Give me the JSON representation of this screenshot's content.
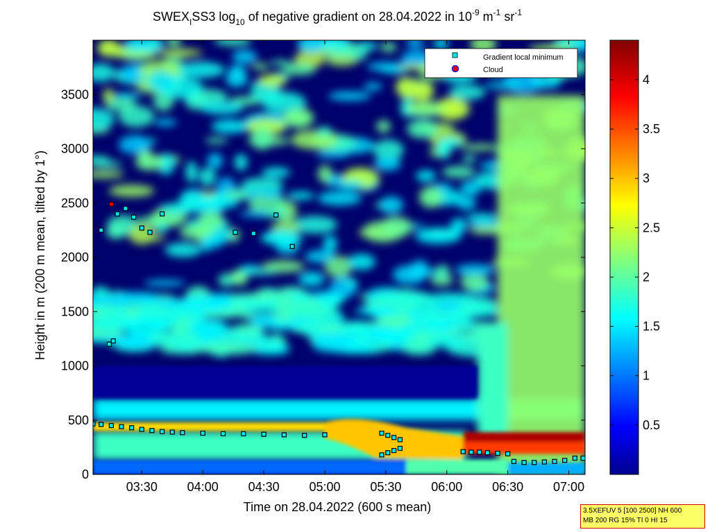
{
  "chart_data": {
    "type": "heatmap",
    "title": {
      "prefix": "SWEX",
      "prefix_sub": "I",
      "mid": "SS3 log",
      "mid_sub": "10",
      "rest": " of negative gradient on 28.04.2022 in 10",
      "sup1": "-9",
      "unit_m": " m",
      "sup2": "-1",
      "unit_sr": " sr",
      "sup3": "-1"
    },
    "xlabel": "Time on 28.04.2022 (600 s mean)",
    "ylabel": "Height in m (200 m mean, tilted by 1°)",
    "x_range": [
      "03:06",
      "07:08"
    ],
    "y_range": [
      0,
      4000
    ],
    "x_ticks": [
      "03:30",
      "04:00",
      "04:30",
      "05:00",
      "05:30",
      "06:00",
      "06:30",
      "07:00"
    ],
    "y_ticks": [
      0,
      500,
      1000,
      1500,
      2000,
      2500,
      3000,
      3500
    ],
    "colorbar": {
      "range": [
        0,
        4.4
      ],
      "ticks": [
        0.5,
        1,
        1.5,
        2,
        2.5,
        3,
        3.5,
        4
      ],
      "tick_labels": [
        "0.5",
        "1",
        "1.5",
        "2",
        "2.5",
        "3",
        "3.5",
        "4"
      ],
      "colormap": "jet"
    },
    "legend": {
      "position": "top-right",
      "entries": [
        {
          "label": "Gradient local minimum",
          "marker": "square",
          "color": "#00e5ee"
        },
        {
          "label": "Cloud",
          "marker": "circle",
          "color": "#dd0000"
        }
      ]
    },
    "layers": {
      "surface_band": {
        "from": "03:06",
        "to": "05:40",
        "height_range": [
          0,
          130
        ],
        "value": 1.0
      },
      "clear_layer": {
        "from": "03:06",
        "to": "06:15",
        "height_range": [
          700,
          1000
        ],
        "value": 0.1
      },
      "aerosol_layer": {
        "from": "03:06",
        "to": "05:00",
        "height_range": [
          400,
          480
        ],
        "value": 2.9
      },
      "strong_gradient": {
        "from": "06:08",
        "to": "07:08",
        "height_range": [
          190,
          390
        ],
        "value": 4.2
      }
    },
    "gradient_local_minimum": [
      {
        "time": "03:06",
        "height": 465
      },
      {
        "time": "03:10",
        "height": 460
      },
      {
        "time": "03:15",
        "height": 450
      },
      {
        "time": "03:20",
        "height": 440
      },
      {
        "time": "03:25",
        "height": 430
      },
      {
        "time": "03:30",
        "height": 415
      },
      {
        "time": "03:35",
        "height": 405
      },
      {
        "time": "03:40",
        "height": 395
      },
      {
        "time": "03:45",
        "height": 390
      },
      {
        "time": "03:50",
        "height": 385
      },
      {
        "time": "04:00",
        "height": 380
      },
      {
        "time": "04:10",
        "height": 375
      },
      {
        "time": "04:20",
        "height": 375
      },
      {
        "time": "04:30",
        "height": 370
      },
      {
        "time": "04:40",
        "height": 365
      },
      {
        "time": "04:50",
        "height": 360
      },
      {
        "time": "05:00",
        "height": 365
      },
      {
        "time": "05:28",
        "height": 380
      },
      {
        "time": "05:31",
        "height": 360
      },
      {
        "time": "05:34",
        "height": 340
      },
      {
        "time": "05:37",
        "height": 320
      },
      {
        "time": "05:28",
        "height": 180
      },
      {
        "time": "05:31",
        "height": 200
      },
      {
        "time": "05:34",
        "height": 220
      },
      {
        "time": "05:37",
        "height": 240
      },
      {
        "time": "06:08",
        "height": 210
      },
      {
        "time": "06:12",
        "height": 205
      },
      {
        "time": "06:16",
        "height": 205
      },
      {
        "time": "06:20",
        "height": 200
      },
      {
        "time": "06:25",
        "height": 195
      },
      {
        "time": "06:30",
        "height": 190
      },
      {
        "time": "06:33",
        "height": 120
      },
      {
        "time": "06:38",
        "height": 110
      },
      {
        "time": "06:43",
        "height": 110
      },
      {
        "time": "06:48",
        "height": 115
      },
      {
        "time": "06:53",
        "height": 120
      },
      {
        "time": "06:58",
        "height": 130
      },
      {
        "time": "07:03",
        "height": 150
      },
      {
        "time": "07:07",
        "height": 150
      },
      {
        "time": "03:10",
        "height": 2250
      },
      {
        "time": "03:18",
        "height": 2400
      },
      {
        "time": "03:22",
        "height": 2450
      },
      {
        "time": "03:26",
        "height": 2370
      },
      {
        "time": "03:30",
        "height": 2270
      },
      {
        "time": "03:34",
        "height": 2230
      },
      {
        "time": "03:40",
        "height": 2400
      },
      {
        "time": "04:16",
        "height": 2230
      },
      {
        "time": "04:25",
        "height": 2220
      },
      {
        "time": "04:36",
        "height": 2390
      },
      {
        "time": "04:44",
        "height": 2100
      },
      {
        "time": "03:14",
        "height": 1200
      },
      {
        "time": "03:16",
        "height": 1230
      }
    ],
    "cloud": [
      {
        "time": "03:15",
        "height": 2490
      }
    ]
  },
  "info_box": {
    "line1": "3.5XEFUV 5 [100 2500] NH 600",
    "line2": "MB 200 RG 15% TI 0 HI 15"
  }
}
